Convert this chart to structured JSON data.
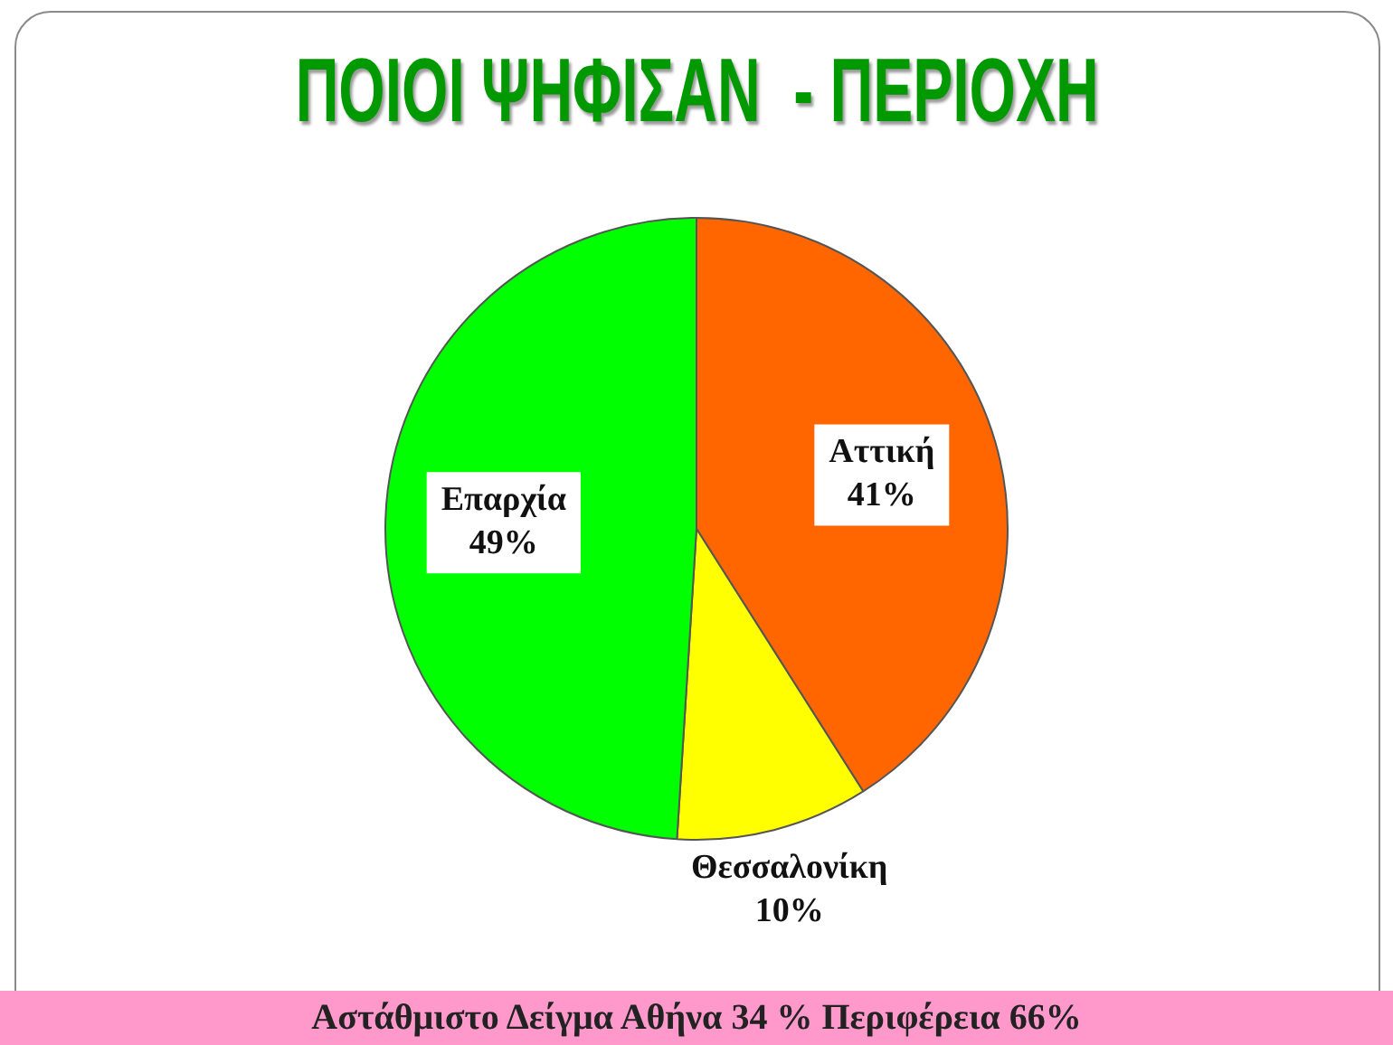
{
  "chart_data": {
    "type": "pie",
    "title": "ΠΟΙΟΙ ΨΗΦΙΣΑΝ  - ΠΕΡΙΟΧΗ",
    "categories": [
      "Αττική",
      "Θεσσαλονίκη",
      "Επαρχία"
    ],
    "values": [
      41,
      10,
      49
    ],
    "colors": [
      "#ff6600",
      "#ffff00",
      "#00ff00"
    ],
    "value_labels": [
      "41%",
      "10%",
      "49%"
    ],
    "annotations": [
      "Αστάθμιστο Δείγμα Αθήνα 34 % Περιφέρεια 66%"
    ]
  }
}
